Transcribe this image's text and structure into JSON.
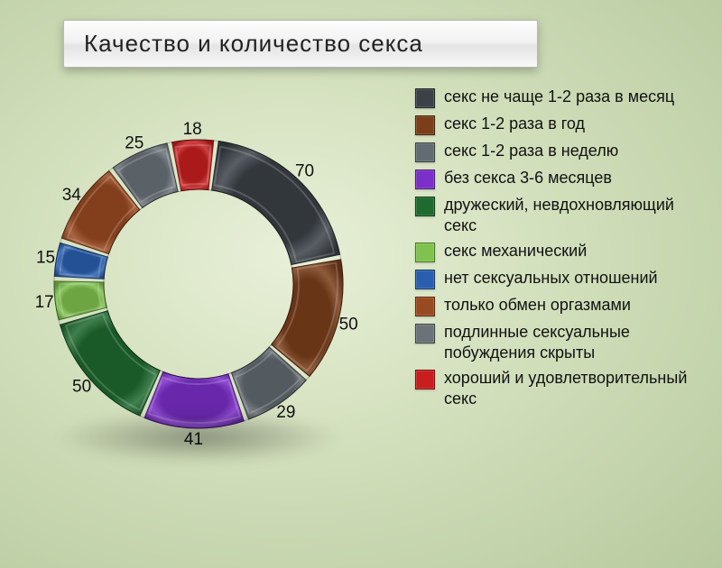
{
  "title": "Качество и количество секса",
  "chart": {
    "type": "donut",
    "background": "radial-gradient green",
    "outer_radius": 160,
    "inner_radius": 105,
    "label_radius": 172,
    "gap_deg": 2,
    "total": 349,
    "slices": [
      {
        "label": "секс не чаще 1-2 раза в месяц",
        "value": 70,
        "color": "#3b4147"
      },
      {
        "label": "секс 1-2 раза в год",
        "value": 50,
        "color": "#7a3e1a"
      },
      {
        "label": "секс 1-2 раза в неделю",
        "value": 29,
        "color": "#626b71"
      },
      {
        "label": "без секса 3-6 месяцев",
        "value": 41,
        "color": "#7c2fc9"
      },
      {
        "label": "дружеский, невдохновляющий секс",
        "value": 50,
        "color": "#1e6a2f"
      },
      {
        "label": "секс механический",
        "value": 17,
        "color": "#7fc24d"
      },
      {
        "label": "нет сексуальных отношений",
        "value": 15,
        "color": "#2a5fb0"
      },
      {
        "label": "только обмен оргазмами",
        "value": 34,
        "color": "#9a4a20"
      },
      {
        "label": "подлинные сексуальные побуждения скрыты",
        "value": 25,
        "color": "#6b7379"
      },
      {
        "label": "хороший и удовлетворительный секс",
        "value": 18,
        "color": "#c81e1e"
      }
    ],
    "start_angle_deg": 7,
    "direction": "clockwise",
    "title_fontsize": 26,
    "label_fontsize": 19,
    "legend_fontsize": 18,
    "text_color": "#111111"
  }
}
